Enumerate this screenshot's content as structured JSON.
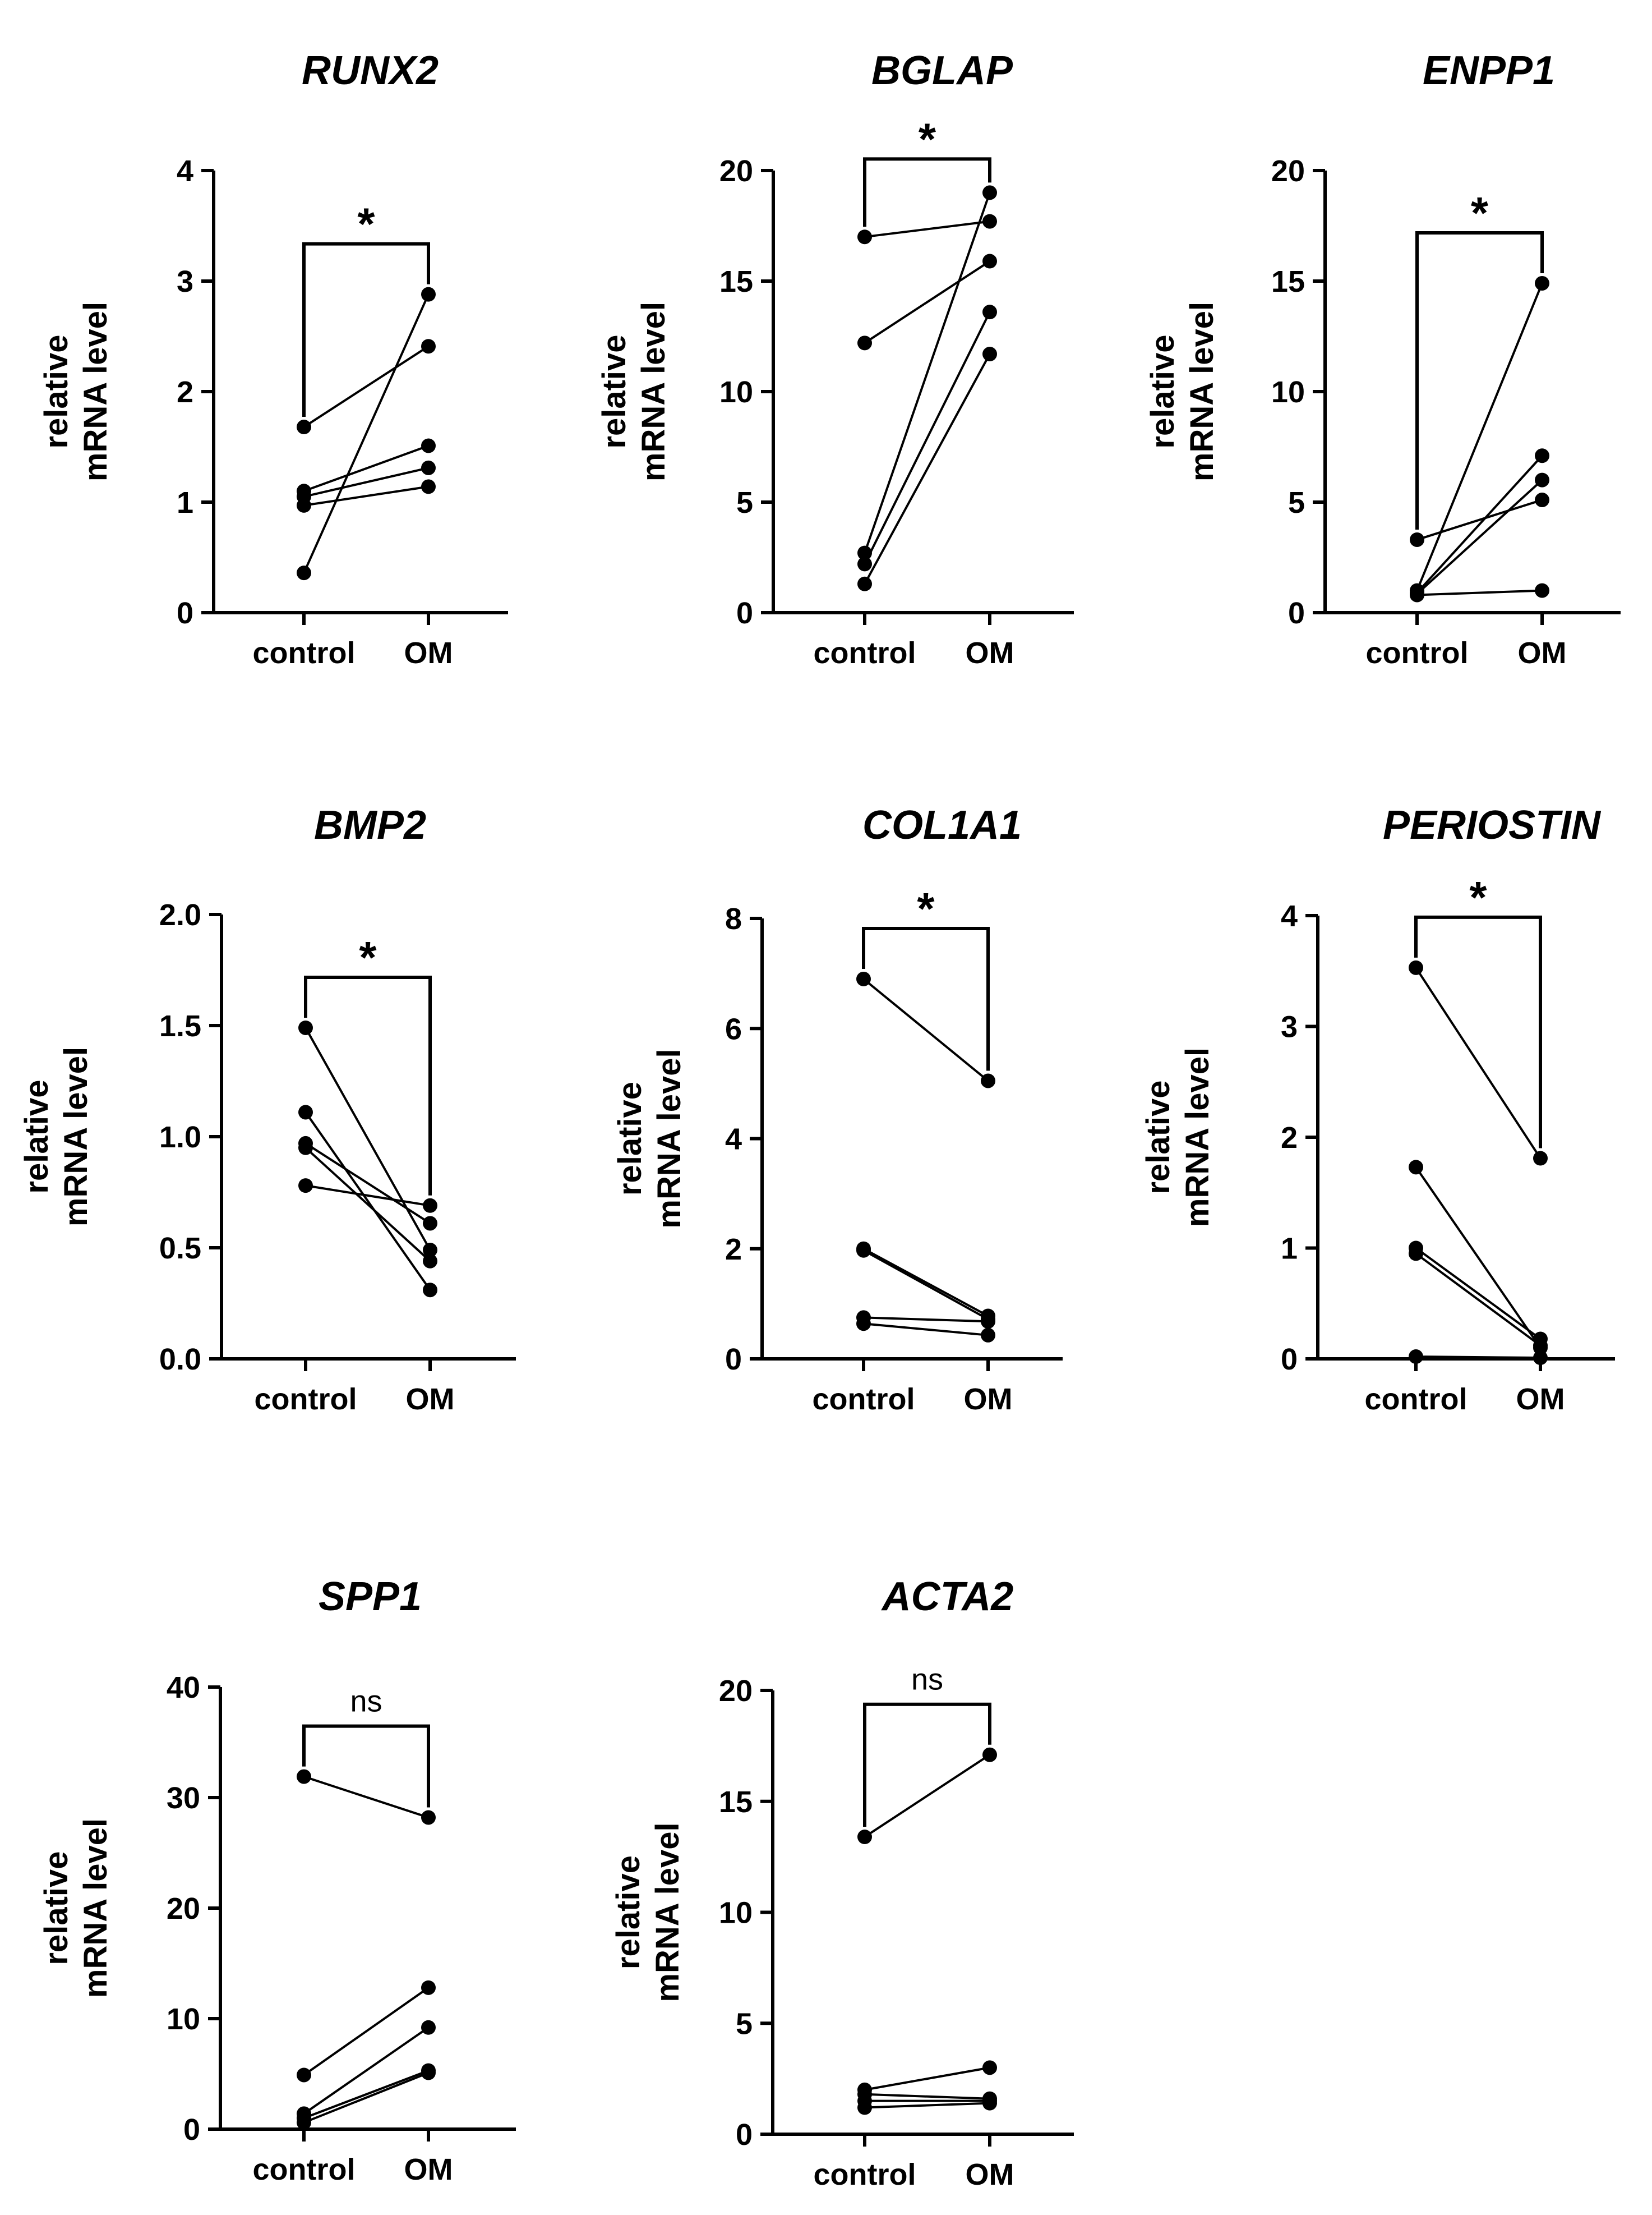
{
  "figure": {
    "y_label_line1": "relative",
    "y_label_line2": "mRNA level"
  },
  "chart_data": [
    {
      "type": "line",
      "title": "RUNX2",
      "ylabel": "relative mRNA level",
      "categories": [
        "control",
        "OM"
      ],
      "ylim": [
        0,
        4
      ],
      "yticks": [
        "0",
        "1",
        "2",
        "3",
        "4"
      ],
      "significance": "*",
      "pairs": [
        [
          1.68,
          2.41
        ],
        [
          1.1,
          1.51
        ],
        [
          1.05,
          1.31
        ],
        [
          0.97,
          1.14
        ],
        [
          0.36,
          2.88
        ]
      ]
    },
    {
      "type": "line",
      "title": "BGLAP",
      "ylabel": "relative mRNA level",
      "categories": [
        "control",
        "OM"
      ],
      "ylim": [
        0,
        20
      ],
      "yticks": [
        "0",
        "5",
        "10",
        "15",
        "20"
      ],
      "significance": "*",
      "pairs": [
        [
          17.0,
          17.7
        ],
        [
          12.2,
          15.9
        ],
        [
          2.7,
          19.0
        ],
        [
          2.2,
          13.6
        ],
        [
          1.3,
          11.7
        ]
      ]
    },
    {
      "type": "line",
      "title": "ENPP1",
      "ylabel": "relative mRNA level",
      "categories": [
        "control",
        "OM"
      ],
      "ylim": [
        0,
        20
      ],
      "yticks": [
        "0",
        "5",
        "10",
        "15",
        "20"
      ],
      "significance": "*",
      "pairs": [
        [
          3.3,
          5.1
        ],
        [
          1.0,
          14.9
        ],
        [
          0.9,
          7.1
        ],
        [
          0.85,
          6.0
        ],
        [
          0.8,
          1.0
        ]
      ]
    },
    {
      "type": "line",
      "title": "BMP2",
      "ylabel": "relative mRNA level",
      "categories": [
        "control",
        "OM"
      ],
      "ylim": [
        0,
        2
      ],
      "yticks": [
        "0.0",
        "0.5",
        "1.0",
        "1.5",
        "2.0"
      ],
      "significance": "*",
      "pairs": [
        [
          1.49,
          0.49
        ],
        [
          1.11,
          0.31
        ],
        [
          0.97,
          0.61
        ],
        [
          0.95,
          0.44
        ],
        [
          0.78,
          0.69
        ]
      ]
    },
    {
      "type": "line",
      "title": "COL1A1",
      "ylabel": "relative mRNA level",
      "categories": [
        "control",
        "OM"
      ],
      "ylim": [
        0,
        8
      ],
      "yticks": [
        "0",
        "2",
        "4",
        "6",
        "8"
      ],
      "significance": "*",
      "pairs": [
        [
          6.9,
          5.05
        ],
        [
          2.0,
          0.78
        ],
        [
          1.97,
          0.72
        ],
        [
          0.75,
          0.68
        ],
        [
          0.64,
          0.43
        ]
      ]
    },
    {
      "type": "line",
      "title": "PERIOSTIN",
      "ylabel": "relative mRNA level",
      "categories": [
        "control",
        "OM"
      ],
      "ylim": [
        0,
        4
      ],
      "yticks": [
        "0",
        "1",
        "2",
        "3",
        "4"
      ],
      "significance": "*",
      "pairs": [
        [
          3.53,
          1.81
        ],
        [
          1.73,
          0.1
        ],
        [
          1.0,
          0.18
        ],
        [
          0.95,
          0.12
        ],
        [
          0.02,
          0.01
        ]
      ]
    },
    {
      "type": "line",
      "title": "SPP1",
      "ylabel": "relative mRNA level",
      "categories": [
        "control",
        "OM"
      ],
      "ylim": [
        0,
        40
      ],
      "yticks": [
        "0",
        "10",
        "20",
        "30",
        "40"
      ],
      "significance": "ns",
      "pairs": [
        [
          31.9,
          28.2
        ],
        [
          4.9,
          12.8
        ],
        [
          1.4,
          9.2
        ],
        [
          1.0,
          5.3
        ],
        [
          0.6,
          5.1
        ]
      ]
    },
    {
      "type": "line",
      "title": "ACTA2",
      "ylabel": "relative mRNA level",
      "categories": [
        "control",
        "OM"
      ],
      "ylim": [
        0,
        20
      ],
      "yticks": [
        "0",
        "5",
        "10",
        "15",
        "20"
      ],
      "significance": "ns",
      "pairs": [
        [
          13.4,
          17.1
        ],
        [
          2.0,
          3.0
        ],
        [
          1.8,
          1.6
        ],
        [
          1.5,
          1.5
        ],
        [
          1.2,
          1.4
        ]
      ]
    }
  ]
}
